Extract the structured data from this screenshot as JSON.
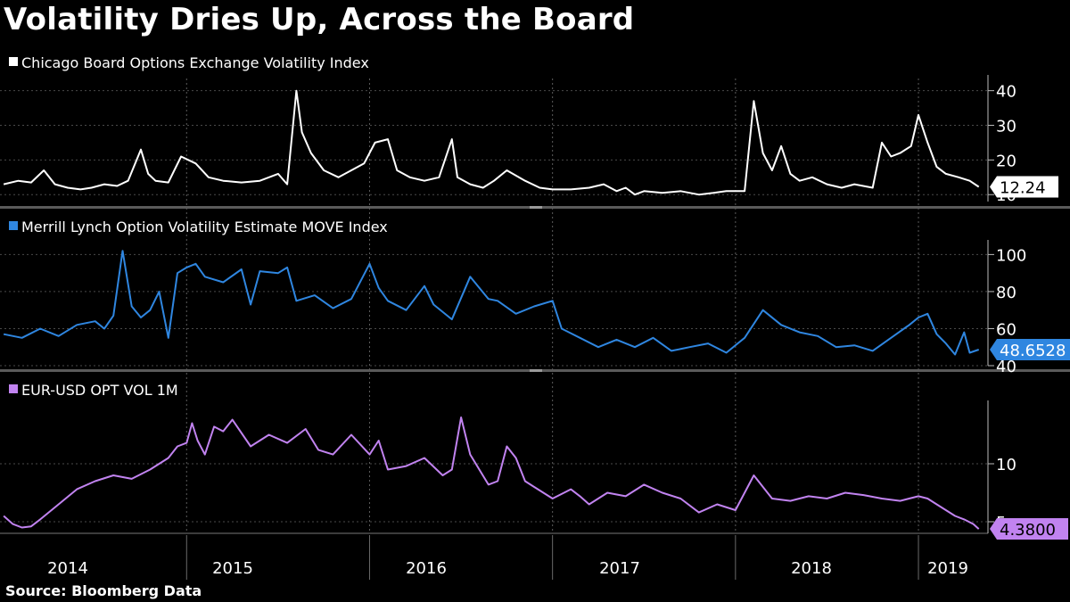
{
  "title": "Volatility Dries Up, Across the Board",
  "source": "Source: Bloomberg Data",
  "chart_data": [
    {
      "type": "line",
      "title": "Chicago Board Options Exchange Volatility Index",
      "legend": "Chicago Board Options Exchange Volatility Index",
      "color": "#ffffff",
      "ylim": [
        8,
        43
      ],
      "yticks": [
        10,
        20,
        30,
        40
      ],
      "ytick_labels": [
        "10",
        "20",
        "30",
        "40"
      ],
      "last_value": "12.24",
      "last_fill": "#ffffff",
      "last_text_color": "#000000",
      "x": [
        2014.0,
        2014.08,
        2014.15,
        2014.22,
        2014.28,
        2014.35,
        2014.42,
        2014.48,
        2014.55,
        2014.62,
        2014.68,
        2014.75,
        2014.79,
        2014.83,
        2014.9,
        2014.97,
        2015.05,
        2015.12,
        2015.2,
        2015.3,
        2015.4,
        2015.5,
        2015.55,
        2015.6,
        2015.63,
        2015.68,
        2015.75,
        2015.83,
        2015.9,
        2015.97,
        2016.03,
        2016.1,
        2016.15,
        2016.22,
        2016.3,
        2016.38,
        2016.45,
        2016.48,
        2016.55,
        2016.62,
        2016.68,
        2016.75,
        2016.85,
        2016.93,
        2017.0,
        2017.1,
        2017.2,
        2017.28,
        2017.35,
        2017.4,
        2017.45,
        2017.5,
        2017.6,
        2017.7,
        2017.8,
        2017.88,
        2017.95,
        2018.05,
        2018.1,
        2018.15,
        2018.2,
        2018.25,
        2018.3,
        2018.35,
        2018.42,
        2018.5,
        2018.58,
        2018.65,
        2018.75,
        2018.8,
        2018.85,
        2018.9,
        2018.96,
        2019.0,
        2019.05,
        2019.1,
        2019.15,
        2019.22,
        2019.28,
        2019.33
      ],
      "values": [
        13,
        14,
        13.5,
        17,
        13,
        12,
        11.5,
        12,
        13,
        12.5,
        14,
        23,
        16,
        14,
        13.5,
        21,
        19,
        15,
        14,
        13.5,
        14,
        16,
        13,
        40,
        28,
        22,
        17,
        15,
        17,
        19,
        25,
        26,
        17,
        15,
        14,
        15,
        26,
        15,
        13,
        12,
        14,
        17,
        14,
        12,
        11.5,
        11.5,
        12,
        13,
        11,
        12,
        10,
        11,
        10.5,
        11,
        10,
        10.5,
        11,
        11,
        37,
        22,
        17,
        24,
        16,
        14,
        15,
        13,
        12,
        13,
        12,
        25,
        21,
        22,
        24,
        33,
        25,
        18,
        16,
        15,
        14,
        12.24
      ]
    },
    {
      "type": "line",
      "title": "Merrill Lynch Option Volatility Estimate MOVE Index",
      "legend": "Merrill Lynch Option Volatility Estimate MOVE Index",
      "color": "#2f86e0",
      "ylim": [
        40,
        105
      ],
      "yticks": [
        40,
        60,
        80,
        100
      ],
      "ytick_labels": [
        "40",
        "60",
        "80",
        "100"
      ],
      "last_value": "48.6528",
      "last_fill": "#2f86e0",
      "last_text_color": "#ffffff",
      "x": [
        2014.0,
        2014.1,
        2014.2,
        2014.3,
        2014.4,
        2014.5,
        2014.55,
        2014.6,
        2014.65,
        2014.7,
        2014.75,
        2014.8,
        2014.85,
        2014.9,
        2014.95,
        2015.0,
        2015.05,
        2015.1,
        2015.2,
        2015.3,
        2015.35,
        2015.4,
        2015.5,
        2015.55,
        2015.6,
        2015.7,
        2015.8,
        2015.9,
        2016.0,
        2016.05,
        2016.1,
        2016.2,
        2016.3,
        2016.35,
        2016.45,
        2016.55,
        2016.65,
        2016.7,
        2016.8,
        2016.9,
        2017.0,
        2017.05,
        2017.15,
        2017.25,
        2017.35,
        2017.45,
        2017.55,
        2017.65,
        2017.75,
        2017.85,
        2017.95,
        2018.05,
        2018.15,
        2018.25,
        2018.35,
        2018.45,
        2018.55,
        2018.65,
        2018.75,
        2018.85,
        2018.95,
        2019.0,
        2019.05,
        2019.1,
        2019.15,
        2019.2,
        2019.25,
        2019.28,
        2019.33
      ],
      "values": [
        57,
        55,
        60,
        56,
        62,
        64,
        60,
        67,
        102,
        72,
        66,
        70,
        80,
        55,
        90,
        93,
        95,
        88,
        85,
        92,
        73,
        91,
        90,
        93,
        75,
        78,
        71,
        76,
        95,
        82,
        75,
        70,
        83,
        73,
        65,
        88,
        76,
        75,
        68,
        72,
        75,
        60,
        55,
        50,
        54,
        50,
        55,
        48,
        50,
        52,
        47,
        55,
        70,
        62,
        58,
        56,
        50,
        51,
        48,
        55,
        62,
        66,
        68,
        57,
        52,
        46,
        58,
        47,
        48.65
      ]
    },
    {
      "type": "line",
      "title": "EUR-USD OPT VOL 1M",
      "legend": "EUR-USD OPT VOL 1M",
      "color": "#c183f0",
      "ylim": [
        4,
        15
      ],
      "yticks": [
        5,
        10
      ],
      "ytick_labels": [
        "5",
        "10"
      ],
      "last_value": "4.3800",
      "last_fill": "#c183f0",
      "last_text_color": "#000000",
      "x": [
        2014.0,
        2014.05,
        2014.1,
        2014.15,
        2014.2,
        2014.3,
        2014.4,
        2014.5,
        2014.6,
        2014.7,
        2014.8,
        2014.9,
        2014.95,
        2015.0,
        2015.03,
        2015.06,
        2015.1,
        2015.15,
        2015.2,
        2015.25,
        2015.35,
        2015.45,
        2015.55,
        2015.65,
        2015.72,
        2015.8,
        2015.9,
        2016.0,
        2016.05,
        2016.1,
        2016.2,
        2016.3,
        2016.4,
        2016.45,
        2016.5,
        2016.55,
        2016.65,
        2016.7,
        2016.75,
        2016.8,
        2016.85,
        2016.9,
        2017.0,
        2017.1,
        2017.15,
        2017.2,
        2017.3,
        2017.4,
        2017.5,
        2017.6,
        2017.7,
        2017.8,
        2017.9,
        2018.0,
        2018.05,
        2018.1,
        2018.2,
        2018.3,
        2018.4,
        2018.5,
        2018.6,
        2018.7,
        2018.8,
        2018.9,
        2019.0,
        2019.05,
        2019.1,
        2019.15,
        2019.2,
        2019.25,
        2019.3,
        2019.33
      ],
      "values": [
        5.5,
        4.8,
        4.5,
        4.6,
        5.2,
        6.5,
        7.8,
        8.5,
        9.0,
        8.7,
        9.5,
        10.5,
        11.5,
        11.8,
        13.5,
        12.0,
        10.8,
        13.2,
        12.8,
        13.8,
        11.5,
        12.5,
        11.8,
        13.0,
        11.2,
        10.8,
        12.5,
        10.8,
        12.0,
        9.5,
        9.8,
        10.5,
        9.0,
        9.5,
        14.0,
        10.8,
        8.2,
        8.5,
        11.5,
        10.5,
        8.5,
        8.0,
        7.0,
        7.8,
        7.2,
        6.5,
        7.5,
        7.2,
        8.2,
        7.5,
        7.0,
        5.8,
        6.5,
        6.0,
        7.5,
        9.0,
        7.0,
        6.8,
        7.2,
        7.0,
        7.5,
        7.3,
        7.0,
        6.8,
        7.2,
        7.0,
        6.5,
        6.0,
        5.5,
        5.2,
        4.8,
        4.38
      ]
    }
  ],
  "x_axis": {
    "years": [
      "2014",
      "2015",
      "2016",
      "2017",
      "2018",
      "2019"
    ],
    "year_starts": [
      2014,
      2015,
      2016,
      2017,
      2018,
      2019
    ],
    "xlim": [
      2013.98,
      2019.38
    ]
  }
}
